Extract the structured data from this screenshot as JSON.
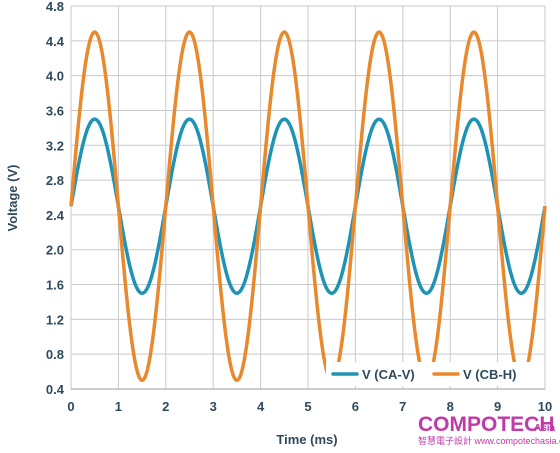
{
  "chart_data": {
    "type": "line",
    "title": "",
    "xlabel": "Time (ms)",
    "ylabel": "Voltage (V)",
    "xlim": [
      0,
      10
    ],
    "ylim": [
      0.4,
      4.8
    ],
    "x_ticks": [
      "0",
      "1",
      "2",
      "3",
      "4",
      "5",
      "6",
      "7",
      "8",
      "9",
      "10"
    ],
    "y_ticks": [
      "0.4",
      "0.8",
      "1.2",
      "1.6",
      "2.0",
      "2.4",
      "2.8",
      "3.2",
      "3.6",
      "4.0",
      "4.4",
      "4.8"
    ],
    "grid": true,
    "legend_position": "bottom-right",
    "series": [
      {
        "name": "V (CA-V)",
        "color": "#1f93b5",
        "offset": 2.5,
        "amplitude": 1.0,
        "frequency_khz": 0.5,
        "phase": 0,
        "x": [
          0,
          0.5,
          1,
          1.5,
          2,
          2.5,
          3,
          3.5,
          4,
          4.5,
          5,
          5.5,
          6,
          6.5,
          7,
          7.5,
          8,
          8.5,
          9,
          9.5,
          10
        ],
        "y": [
          2.5,
          3.5,
          2.5,
          1.5,
          2.5,
          3.5,
          2.5,
          1.5,
          2.5,
          3.5,
          2.5,
          1.5,
          2.5,
          3.5,
          2.5,
          1.5,
          2.5,
          3.5,
          2.5,
          1.5,
          2.5
        ]
      },
      {
        "name": "V (CB-H)",
        "color": "#e8892d",
        "offset": 2.5,
        "amplitude": 2.0,
        "frequency_khz": 0.5,
        "phase": 0,
        "x": [
          0,
          0.5,
          1,
          1.5,
          2,
          2.5,
          3,
          3.5,
          4,
          4.5,
          5,
          5.5,
          6,
          6.5,
          7,
          7.5,
          8,
          8.5,
          9,
          9.5,
          10
        ],
        "y": [
          2.5,
          4.5,
          2.5,
          0.5,
          2.5,
          4.5,
          2.5,
          0.5,
          2.5,
          4.5,
          2.5,
          0.5,
          2.5,
          4.5,
          2.5,
          0.5,
          2.5,
          4.5,
          2.5,
          0.5,
          2.5
        ]
      }
    ]
  },
  "watermark": {
    "brand": "COMPOTECH",
    "brand_sub": "Asia",
    "tagline": "智慧電子設計 www.compotechasia.com"
  }
}
